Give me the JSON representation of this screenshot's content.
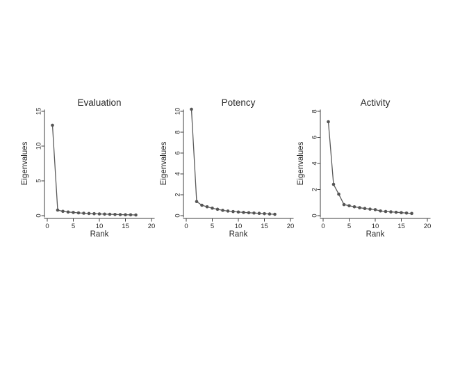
{
  "figure": {
    "background_color": "#ffffff",
    "text_color": "#262626",
    "axis_color": "#3d3d3d",
    "line_color": "#5a5a5a",
    "marker_color": "#555555"
  },
  "chart_data": [
    {
      "type": "line",
      "title": "Evaluation",
      "xlabel": "Rank",
      "ylabel": "Eigenvalues",
      "x": [
        1,
        2,
        3,
        4,
        5,
        6,
        7,
        8,
        9,
        10,
        11,
        12,
        13,
        14,
        15,
        16,
        17
      ],
      "values": [
        13.0,
        0.8,
        0.62,
        0.52,
        0.46,
        0.4,
        0.35,
        0.31,
        0.28,
        0.25,
        0.22,
        0.2,
        0.17,
        0.15,
        0.13,
        0.12,
        0.1
      ],
      "xlim": [
        0,
        20
      ],
      "ylim": [
        0,
        15
      ],
      "xticks": [
        0,
        5,
        10,
        15,
        20
      ],
      "yticks": [
        0,
        5,
        10,
        15
      ],
      "marker": "circle",
      "grid": false,
      "legend": "none"
    },
    {
      "type": "line",
      "title": "Potency",
      "xlabel": "Rank",
      "ylabel": "Eigenvalues",
      "x": [
        1,
        2,
        3,
        4,
        5,
        6,
        7,
        8,
        9,
        10,
        11,
        12,
        13,
        14,
        15,
        16,
        17
      ],
      "values": [
        10.2,
        1.35,
        1.0,
        0.85,
        0.72,
        0.61,
        0.51,
        0.44,
        0.39,
        0.35,
        0.31,
        0.28,
        0.25,
        0.22,
        0.19,
        0.16,
        0.13
      ],
      "xlim": [
        0,
        20
      ],
      "ylim": [
        0,
        10
      ],
      "xticks": [
        0,
        5,
        10,
        15,
        20
      ],
      "yticks": [
        0,
        2,
        4,
        6,
        8,
        10
      ],
      "marker": "circle",
      "grid": false,
      "legend": "none"
    },
    {
      "type": "line",
      "title": "Activity",
      "xlabel": "Rank",
      "ylabel": "Eigenvalues",
      "x": [
        1,
        2,
        3,
        4,
        5,
        6,
        7,
        8,
        9,
        10,
        11,
        12,
        13,
        14,
        15,
        16,
        17
      ],
      "values": [
        7.2,
        2.4,
        1.65,
        0.85,
        0.76,
        0.68,
        0.61,
        0.55,
        0.5,
        0.46,
        0.36,
        0.32,
        0.29,
        0.26,
        0.23,
        0.2,
        0.17
      ],
      "xlim": [
        0,
        20
      ],
      "ylim": [
        0,
        8
      ],
      "xticks": [
        0,
        5,
        10,
        15,
        20
      ],
      "yticks": [
        0,
        2,
        4,
        6,
        8
      ],
      "marker": "circle",
      "grid": false,
      "legend": "none"
    }
  ]
}
